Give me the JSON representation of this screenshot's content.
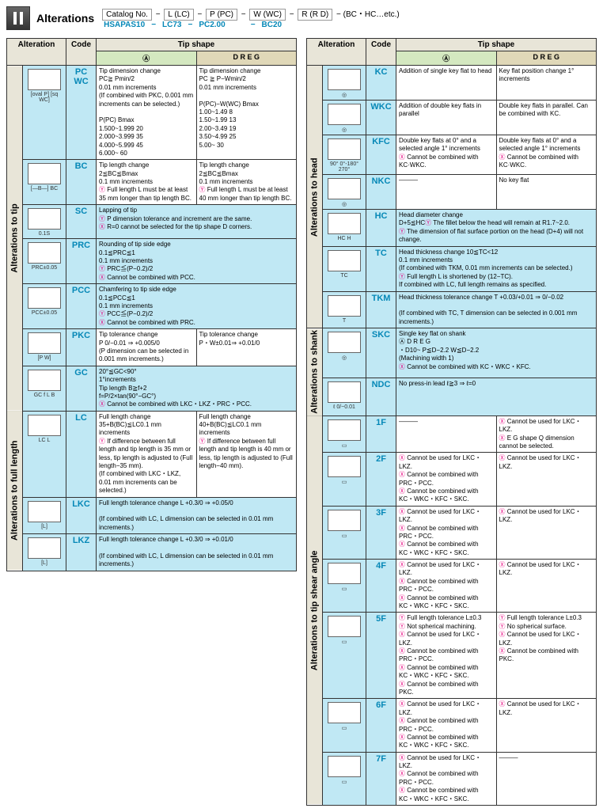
{
  "header": {
    "title": "Alterations",
    "orderRow1": [
      "Catalog No.",
      "−",
      "L (LC)",
      "−",
      "P (PC)",
      "−",
      "W (WC)",
      "−",
      "R (R D)",
      "−",
      "(BC・HC…etc.)"
    ],
    "orderRow2": [
      "HSAPAS10",
      "−",
      "LC73",
      "−",
      "PC2.00",
      "",
      "",
      "",
      "−",
      "BC20"
    ]
  },
  "tableHeaders": {
    "alteration": "Alteration",
    "code": "Code",
    "tipshape": "Tip shape",
    "shapeA": "Ⓐ",
    "shapeD": "D R E G"
  },
  "left": {
    "sections": [
      {
        "label": "Alterations to tip",
        "rows": [
          {
            "code": "PC\nWC",
            "descA": "Tip dimension change\nPC≧ Pmin/2\n0.01 mm increments\n(If combined with PKC, 0.001 mm increments can be selected.)\n\nP(PC)    Bmax\n1.500~1.999  20\n2.000~3.999  35\n4.000~5.999  45\n6.000~       60",
            "descD": "Tip dimension change\nPC ≧ P−Wmin/2\n0.01 mm increments\n\nP(PC)−W(WC)  Bmax\n1.00~1.49   8\n1.50~1.99  13\n2.00~3.49  19\n3.50~4.99  25\n5.00~      30",
            "dia": "[oval P]\n[sq WC]"
          },
          {
            "code": "BC",
            "descA": "Tip length change\n2≦BC≦Bmax\n0.1 mm increments\nⓎ Full length L must be at least 35 mm longer than tip length BC.",
            "descD": "Tip length change\n2≦BC≦Bmax\n0.1 mm increments\nⓎ Full length L must be at least 40 mm longer than tip length BC.",
            "dia": "[—B—]\n BC"
          },
          {
            "code": "SC",
            "descA": "Lapping of tip\nⓎ P dimension tolerance and increment are the same.\nⓍ R=0 cannot be selected for the tip shape D corners.",
            "span": true,
            "dia": "0.1S"
          },
          {
            "code": "PRC",
            "descA": "Rounding of tip side edge\n0.1≦PRC≦1\n0.1 mm increments\nⓎ PRC≦(P−0.2)/2\nⓍ Cannot be combined with PCC.",
            "span": true,
            "dia": "PRC±0.05"
          },
          {
            "code": "PCC",
            "descA": "Chamfering to tip side edge\n0.1≦PCC≦1\n0.1 mm increments\nⓎ PCC≦(P−0.2)/2\nⓍ Cannot be combined with PRC.",
            "span": true,
            "dia": "PCC±0.05"
          },
          {
            "code": "PKC",
            "descA": "Tip tolerance change\nP 0/−0.01 ⇒ +0.005/0\n(P dimension can be selected in 0.001 mm increments.)",
            "descD": "Tip tolerance change\nP・W±0.01⇒ +0.01/0",
            "dia": "[P W]"
          },
          {
            "code": "GC",
            "descA": "20°≦GC<90°\n1°increments\nTip length B≧f+2\nf=P/2×tan(90°−GC°)\nⓍ Cannot be combined with LKC・LKZ・PRC・PCC.",
            "span": true,
            "dia": "GC\n f\n L  B"
          }
        ]
      },
      {
        "label": "Alterations to full length",
        "rows": [
          {
            "code": "LC",
            "descA": "Full length change\n35+B(BC)≦LC<L\n0.1 mm increments\nⓎ If difference between full length and tip length is 35 mm or less, tip length is adjusted to (Full length−35 mm).\n(If combined with LKC・LKZ, 0.01 mm increments can be selected.)",
            "descD": "Full length change\n40+B(BC)≦LC<L\n0.1 mm increments\nⓎ If difference between full length and tip length is 40 mm or less, tip length is adjusted to (Full length−40 mm).",
            "dia": "LC\n L"
          },
          {
            "code": "LKC",
            "descA": "Full length tolerance change  L +0.3/0 ⇒ +0.05/0\n\n(If combined with LC, L dimension can be selected in 0.01 mm increments.)",
            "span": true,
            "dia": "[L]"
          },
          {
            "code": "LKZ",
            "descA": "Full length tolerance change  L +0.3/0 ⇒ +0.01/0\n\n(If combined with LC, L dimension can be selected in 0.01 mm increments.)",
            "span": true,
            "dia": "[L]"
          }
        ]
      }
    ]
  },
  "right": {
    "sections": [
      {
        "label": "Alterations to head",
        "rows": [
          {
            "code": "KC",
            "descA": "Addition of single key flat to head",
            "descD": "Key flat position change 1° increments",
            "dia": "◎",
            "dia2": "90°\n0°-180°\n270°"
          },
          {
            "code": "WKC",
            "descA": "Addition of double key flats in parallel",
            "descD": "Double key flats in parallel. Can be combined with KC.",
            "dia": "◎"
          },
          {
            "code": "KFC",
            "descA": "Double key flats at 0° and a selected angle 1° increments\nⓍ Cannot be combined with KC·WKC.",
            "descD": "Double key flats at 0° and a selected angle 1° increments\nⓍ Cannot be combined with KC·WKC.",
            "dia": "90°\n0°-180°\n270°"
          },
          {
            "code": "NKC",
            "descA": "———",
            "descD": "No key flat",
            "dia": "◎"
          },
          {
            "code": "HC",
            "descA": "Head diameter change\nD+5≦HC<H   0.1 mm increments\nⓎ The fillet below the head will remain at R1.7~2.0.\nⓎ The dimension of flat surface portion on the head (D+4) will not change.",
            "span": true,
            "dia": "HC H"
          },
          {
            "code": "TC",
            "descA": "Head thickness change 10≦TC<12\n0.1 mm increments\n(If combined with TKM, 0.01 mm increments can be selected.)\nⓎ Full length L is shortened by (12−TC).\nIf combined with LC, full length remains as specified.",
            "span": true,
            "dia": "TC"
          },
          {
            "code": "TKM",
            "descA": "Head thickness tolerance change  T +0.03/+0.01 ⇒ 0/−0.02\n\n(If combined with TC, T dimension can be selected in 0.001 mm increments.)",
            "span": true,
            "dia": "T"
          }
        ]
      },
      {
        "label": "Alterations to shank",
        "rows": [
          {
            "code": "SKC",
            "descA": "Single key flat on shank\nⒶ                    D R E G\n・D10~   P≦D−2.2   W≦D−2.2\n(Machining width 1)\nⓍ Cannot be combined with KC・WKC・KFC.",
            "span": true,
            "dia": "◎"
          },
          {
            "code": "NDC",
            "descA": "No press-in lead  ℓ≧3 ⇒ ℓ=0",
            "span": true,
            "dia": "ℓ 0/−0.01"
          }
        ]
      },
      {
        "label": "Alterations to tip shear angle",
        "rows": [
          {
            "code": "1F",
            "descA": "———",
            "descD": "Ⓧ Cannot be used for LKC・LKZ.\nⓍ E G shape Q dimension cannot be selected.",
            "dia": "▭"
          },
          {
            "code": "2F",
            "descA": "Ⓧ Cannot be used for LKC・LKZ.\nⓍ Cannot be combined with PRC・PCC.\nⓍ Cannot be combined with KC・WKC・KFC・SKC.",
            "descD": "Ⓧ Cannot be used for LKC・LKZ.",
            "dia": "▭"
          },
          {
            "code": "3F",
            "descA": "Ⓧ Cannot be used for LKC・LKZ.\nⓍ Cannot be combined with PRC・PCC.\nⓍ Cannot be combined with KC・WKC・KFC・SKC.",
            "descD": "Ⓧ Cannot be used for LKC・LKZ.",
            "dia": "▭"
          },
          {
            "code": "4F",
            "descA": "Ⓧ Cannot be used for LKC・LKZ.\nⓍ Cannot be combined with PRC・PCC.\nⓍ Cannot be combined with KC・WKC・KFC・SKC.",
            "descD": "Ⓧ Cannot be used for LKC・LKZ.",
            "dia": "▭"
          },
          {
            "code": "5F",
            "descA": "Ⓨ Full length tolerance L±0.3\nⓎ Not spherical machining.\nⓍ Cannot be used for LKC・LKZ.\nⓍ Cannot be combined with PRC・PCC.\nⓍ Cannot be combined with KC・WKC・KFC・SKC.\nⓍ Cannot be combined with PKC.",
            "descD": "Ⓨ Full length tolerance L±0.3\nⓎ No spherical surface.\nⓍ Cannot be used for LKC・LKZ.\nⓍ Cannot be combined with PKC.",
            "dia": "▭"
          },
          {
            "code": "6F",
            "descA": "Ⓧ Cannot be used for LKC・LKZ.\nⓍ Cannot be combined with PRC・PCC.\nⓍ Cannot be combined with KC・WKC・KFC・SKC.",
            "descD": "Ⓧ Cannot be used for LKC・LKZ.",
            "dia": "▭"
          },
          {
            "code": "7F",
            "descA": "Ⓧ Cannot be used for LKC・LKZ.\nⓍ Cannot be combined with PRC・PCC.\nⓍ Cannot be combined with KC・WKC・KFC・SKC.",
            "descD": "———",
            "dia": "▭"
          }
        ]
      }
    ]
  }
}
